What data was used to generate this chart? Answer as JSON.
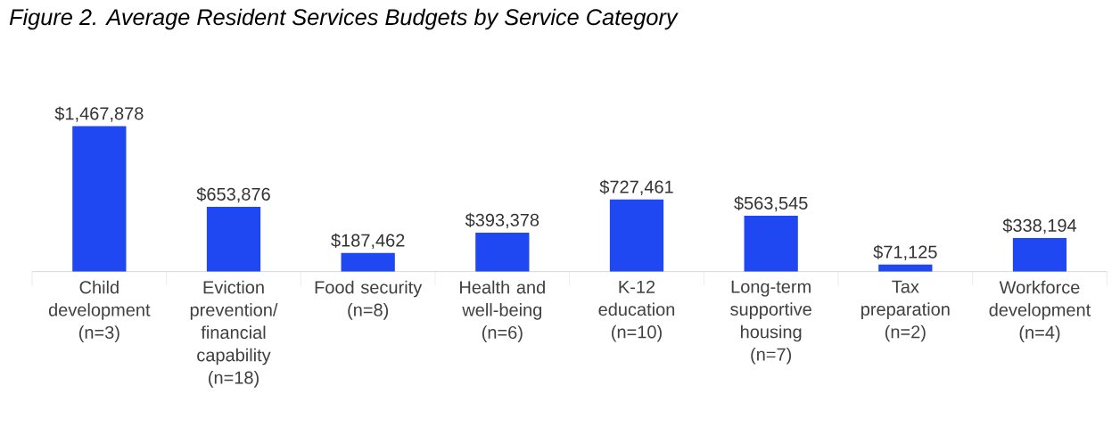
{
  "chart_data": {
    "type": "bar",
    "title": "Figure 2. Average Resident Services Budgets by Service Category",
    "categories": [
      "Child development (n=3)",
      "Eviction prevention/ financial capability (n=18)",
      "Food security (n=8)",
      "Health and well-being (n=6)",
      "K-12 education (n=10)",
      "Long-term supportive housing (n=7)",
      "Tax preparation (n=2)",
      "Workforce development (n=4)"
    ],
    "values": [
      1467878,
      653876,
      187462,
      393378,
      727461,
      563545,
      71125,
      338194
    ],
    "value_labels": [
      "$1,467,878",
      "$653,876",
      "$187,462",
      "$393,378",
      "$727,461",
      "$563,545",
      "$71,125",
      "$338,194"
    ],
    "color": "#1f48f2"
  }
}
